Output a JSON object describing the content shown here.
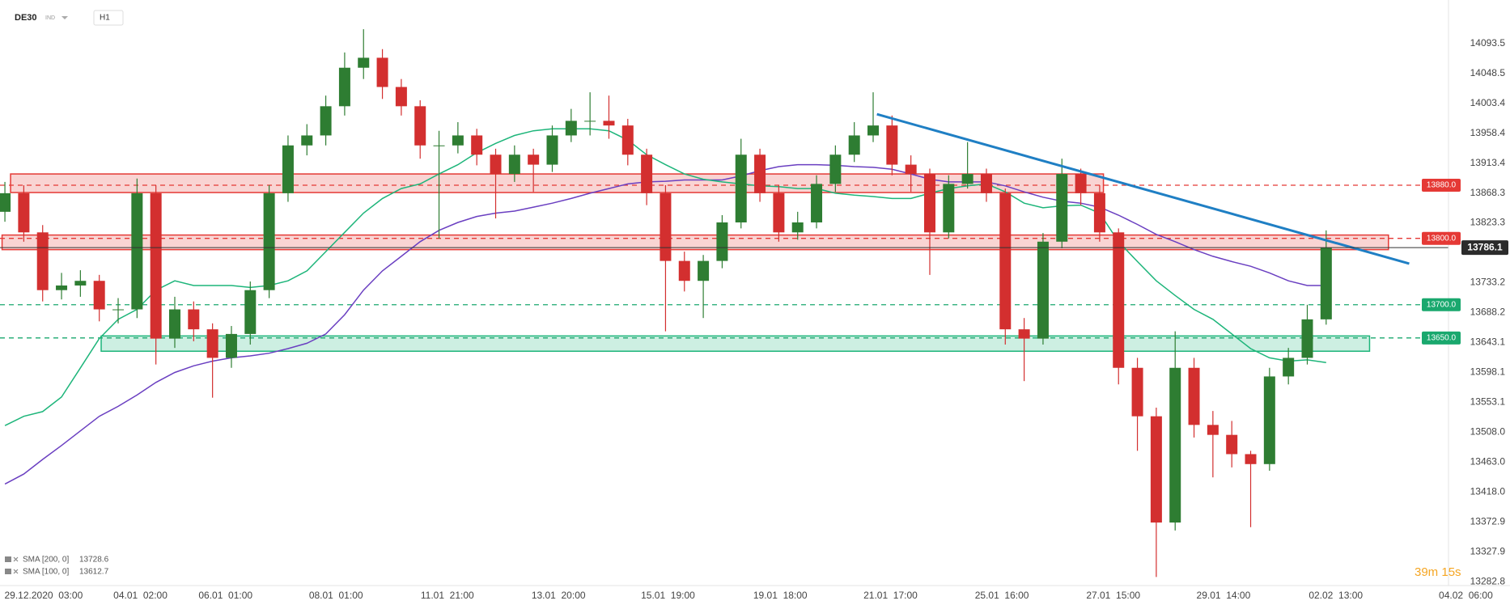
{
  "toolbar": {
    "symbol": "DE30",
    "market": "IND",
    "interval": "H1"
  },
  "timer": "39m 15s",
  "chart_data": {
    "type": "candlestick",
    "up_color": "#2e7d32",
    "down_color": "#d32f2f",
    "x": [
      0,
      1,
      2,
      3,
      4,
      5,
      6,
      7,
      8,
      9,
      10,
      11,
      12,
      13,
      14,
      15,
      16,
      17,
      18,
      19,
      20,
      21,
      22,
      23,
      24,
      25,
      26,
      27,
      28,
      29,
      30,
      31,
      32,
      33,
      34,
      35,
      36,
      37,
      38,
      39,
      40,
      41,
      42,
      43,
      44,
      45,
      46,
      47,
      48,
      49,
      50,
      51,
      52,
      53,
      54,
      55,
      56,
      57,
      58,
      59,
      60,
      61,
      62,
      63,
      64,
      65,
      66,
      67,
      68,
      69,
      70
    ],
    "open": [
      13840,
      13868,
      13809,
      13722,
      13729,
      13736,
      13693,
      13693,
      13868,
      13649,
      13693,
      13663,
      13620,
      13656,
      13722,
      13868,
      13940,
      13955,
      13999,
      14057,
      14072,
      14028,
      13999,
      13940,
      13940,
      13955,
      13926,
      13897,
      13926,
      13911,
      13955,
      13977,
      13977,
      13970,
      13926,
      13868,
      13766,
      13736,
      13766,
      13824,
      13926,
      13868,
      13809,
      13824,
      13882,
      13926,
      13955,
      13970,
      13911,
      13897,
      13809,
      13882,
      13897,
      13868,
      13663,
      13649,
      13795,
      13897,
      13868,
      13809,
      13605,
      13532,
      13372,
      13605,
      13519,
      13504,
      13475,
      13460,
      13592,
      13620,
      13678
    ],
    "high": [
      13885,
      13880,
      13820,
      13748,
      13752,
      13745,
      13710,
      13890,
      13880,
      13712,
      13705,
      13672,
      13668,
      13735,
      13880,
      13955,
      13972,
      14015,
      14080,
      14115,
      14085,
      14040,
      14008,
      13962,
      13975,
      13965,
      13935,
      13940,
      13935,
      13970,
      13995,
      14020,
      14015,
      13980,
      13935,
      13880,
      13780,
      13775,
      13835,
      13950,
      13935,
      13880,
      13840,
      13895,
      13940,
      13975,
      14020,
      13985,
      13925,
      13905,
      13895,
      13945,
      13905,
      13875,
      13680,
      13808,
      13920,
      13905,
      13880,
      13815,
      13620,
      13545,
      13660,
      13620,
      13540,
      13525,
      13480,
      13605,
      13635,
      13700,
      13812
    ],
    "low": [
      13825,
      13795,
      13705,
      13708,
      13712,
      13675,
      13672,
      13680,
      13610,
      13635,
      13645,
      13560,
      13605,
      13640,
      13710,
      13855,
      13925,
      13940,
      13985,
      14040,
      14010,
      13985,
      13920,
      13800,
      13928,
      13910,
      13830,
      13885,
      13870,
      13900,
      13945,
      13955,
      13950,
      13910,
      13850,
      13660,
      13720,
      13680,
      13755,
      13815,
      13855,
      13795,
      13798,
      13815,
      13870,
      13915,
      13945,
      13895,
      13870,
      13745,
      13800,
      13875,
      13855,
      13640,
      13585,
      13640,
      13785,
      13850,
      13795,
      13580,
      13480,
      13290,
      13360,
      13500,
      13440,
      13455,
      13365,
      13450,
      13580,
      13610,
      13670
    ],
    "close": [
      13868,
      13809,
      13722,
      13729,
      13736,
      13693,
      13693,
      13868,
      13649,
      13693,
      13663,
      13620,
      13656,
      13722,
      13868,
      13940,
      13955,
      13999,
      14057,
      14072,
      14028,
      13999,
      13940,
      13940,
      13955,
      13926,
      13897,
      13926,
      13911,
      13955,
      13977,
      13977,
      13970,
      13926,
      13868,
      13766,
      13736,
      13766,
      13824,
      13926,
      13868,
      13809,
      13824,
      13882,
      13926,
      13955,
      13970,
      13911,
      13897,
      13809,
      13882,
      13897,
      13868,
      13663,
      13649,
      13795,
      13897,
      13868,
      13809,
      13605,
      13532,
      13372,
      13605,
      13519,
      13504,
      13475,
      13460,
      13592,
      13620,
      13678,
      13786.1
    ],
    "series": [
      {
        "name": "SMA [200, 0]",
        "last_value": 13728.6,
        "color": "#6a3fc1",
        "values": [
          13430,
          13445,
          13467,
          13488,
          13510,
          13532,
          13547,
          13564,
          13583,
          13598,
          13608,
          13615,
          13620,
          13623,
          13627,
          13634,
          13642,
          13656,
          13685,
          13722,
          13751,
          13773,
          13795,
          13812,
          13824,
          13833,
          13838,
          13841,
          13847,
          13853,
          13860,
          13868,
          13875,
          13882,
          13885,
          13886,
          13888,
          13888,
          13888,
          13894,
          13902,
          13908,
          13911,
          13911,
          13910,
          13908,
          13907,
          13904,
          13897,
          13889,
          13885,
          13885,
          13885,
          13879,
          13870,
          13862,
          13856,
          13853,
          13847,
          13835,
          13821,
          13806,
          13795,
          13783,
          13773,
          13765,
          13758,
          13748,
          13736,
          13729,
          13729
        ]
      },
      {
        "name": "SMA [100, 0]",
        "last_value": 13612.7,
        "color": "#1db57a",
        "values": [
          13518,
          13532,
          13539,
          13561,
          13605,
          13649,
          13678,
          13693,
          13722,
          13736,
          13729,
          13729,
          13729,
          13726,
          13729,
          13736,
          13751,
          13780,
          13809,
          13838,
          13860,
          13875,
          13882,
          13897,
          13911,
          13929,
          13943,
          13955,
          13962,
          13965,
          13965,
          13965,
          13962,
          13948,
          13926,
          13911,
          13897,
          13889,
          13885,
          13882,
          13879,
          13878,
          13875,
          13875,
          13868,
          13865,
          13863,
          13860,
          13860,
          13868,
          13875,
          13879,
          13882,
          13870,
          13853,
          13846,
          13849,
          13850,
          13838,
          13795,
          13765,
          13736,
          13714,
          13693,
          13678,
          13656,
          13634,
          13620,
          13615,
          13617,
          13613
        ]
      }
    ],
    "zones": [
      {
        "x": [
          0.3,
          58.2
        ],
        "y": [
          13869,
          13897
        ],
        "color": "#e53935"
      },
      {
        "x": [
          -0.15,
          73.3
        ],
        "y": [
          13783,
          13805
        ],
        "color": "#e53935"
      },
      {
        "x": [
          5.1,
          72.3
        ],
        "y": [
          13630,
          13653
        ],
        "color": "#1db57a"
      }
    ],
    "levels": [
      {
        "value": 13880,
        "label": "13880.0",
        "color": "#e53935"
      },
      {
        "value": 13800,
        "label": "13800.0",
        "color": "#e53935"
      },
      {
        "value": 13700,
        "label": "13700.0",
        "color": "#1aa86e"
      },
      {
        "value": 13650,
        "label": "13650.0",
        "color": "#1aa86e"
      }
    ],
    "trendline": {
      "x": [
        46.2,
        74.4
      ],
      "y": [
        13987,
        13762
      ],
      "color": "#1f7fc4"
    },
    "last_price": 13786.1,
    "xlim": [
      -0.26,
      79.74
    ],
    "ylim": [
      13277,
      14159
    ],
    "yticks": [
      14093.5,
      14048.5,
      14003.4,
      13958.4,
      13913.4,
      13868.3,
      13823.3,
      13733.2,
      13688.2,
      13643.1,
      13598.1,
      13553.1,
      {
        "value": 13508,
        "label": "13508.0"
      },
      {
        "value": 13463,
        "label": "13463.0"
      },
      {
        "value": 13418,
        "label": "13418.0"
      },
      13372.9,
      13327.9,
      13282.8
    ],
    "xticks": [
      {
        "value": 2.05,
        "label": "29.12.2020  03:00"
      },
      {
        "value": 7.18,
        "label": "04.01  02:00"
      },
      {
        "value": 11.69,
        "label": "06.01  01:00"
      },
      {
        "value": 17.54,
        "label": "08.01  01:00"
      },
      {
        "value": 23.44,
        "label": "11.01  21:00"
      },
      {
        "value": 29.33,
        "label": "13.01  20:00"
      },
      {
        "value": 35.13,
        "label": "15.01  19:00"
      },
      {
        "value": 41.08,
        "label": "19.01  18:00"
      },
      {
        "value": 46.92,
        "label": "21.01  17:00"
      },
      {
        "value": 52.82,
        "label": "25.01  16:00"
      },
      {
        "value": 58.72,
        "label": "27.01  15:00"
      },
      {
        "value": 64.56,
        "label": "29.01  14:00"
      },
      {
        "value": 70.51,
        "label": "02.02  13:00"
      },
      {
        "value": 77.4,
        "label": "04.02  06:00"
      }
    ],
    "grid": false
  }
}
